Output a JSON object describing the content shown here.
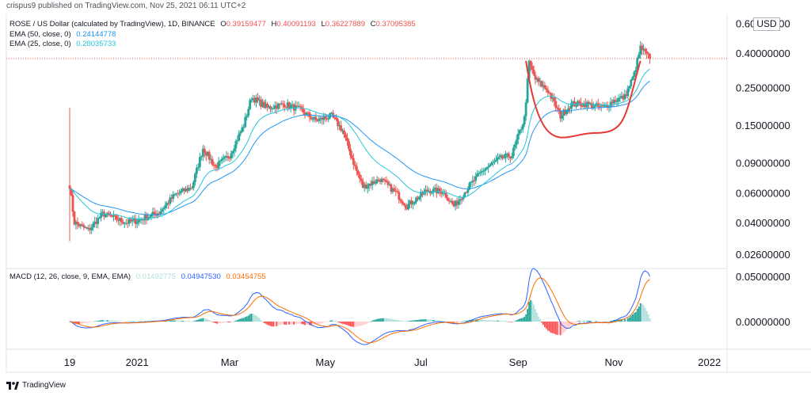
{
  "header": {
    "publisher": "crispus9 published on TradingView.com, Nov 25, 2021 06:11 UTC+2"
  },
  "legend": {
    "symbol": "ROSE / US Dollar (calculated by TradingView), 1D, BINANCE",
    "ohlc": [
      {
        "label": "O",
        "value": "0.39159477"
      },
      {
        "label": "H",
        "value": "0.40091193"
      },
      {
        "label": "L",
        "value": "0.36227889"
      },
      {
        "label": "C",
        "value": "0.37095385"
      }
    ],
    "ema50": {
      "label": "EMA (50, close, 0)",
      "value": "0.24144778"
    },
    "ema25": {
      "label": "EMA (25, close, 0)",
      "value": "0.28035733"
    },
    "macd": {
      "label": "MACD (12, 26, close, 9, EMA, EMA)",
      "hist": "0.01492775",
      "macd": "0.04947530",
      "signal": "0.03454755"
    }
  },
  "currency_badge": "USD",
  "footer": {
    "logo_text": "TradingView"
  },
  "colors": {
    "up": "#26a69a",
    "down": "#ef5350",
    "ema50": "#2196f3",
    "ema25": "#26c6da",
    "macd": "#2962ff",
    "signal": "#ff6d00",
    "hist_up_strong": "#26a69a",
    "hist_up_weak": "#b2dfdb",
    "hist_down_strong": "#ff5252",
    "hist_down_weak": "#ffcdd2",
    "annotation": "#e53935",
    "close_line": "#ef5350"
  },
  "chart_data": [
    {
      "type": "candlestick",
      "title": "ROSE / US Dollar (calculated by TradingView), 1D, BINANCE",
      "y_scale": "log",
      "ylim": [
        0.022,
        0.62
      ],
      "y_ticks": [
        "0.60000000",
        "0.40000000",
        "0.25000000",
        "0.15000000",
        "0.09000000",
        "0.06000000",
        "0.04000000",
        "0.02600000"
      ],
      "y_tick_values": [
        0.6,
        0.4,
        0.25,
        0.15,
        0.09,
        0.06,
        0.04,
        0.026
      ],
      "x_ticks": [
        "19",
        "2021",
        "Mar",
        "May",
        "Jul",
        "Sep",
        "Nov",
        "2022"
      ],
      "x_tick_dates": [
        "2020-11-19",
        "2021-01-01",
        "2021-03-01",
        "2021-05-01",
        "2021-07-01",
        "2021-09-01",
        "2021-11-01",
        "2022-01-01"
      ],
      "last_close": 0.371,
      "close_anchor_points": [
        [
          "2020-11-19",
          0.066
        ],
        [
          "2020-11-22",
          0.04
        ],
        [
          "2020-12-01",
          0.036
        ],
        [
          "2020-12-10",
          0.045
        ],
        [
          "2020-12-25",
          0.04
        ],
        [
          "2021-01-01",
          0.041
        ],
        [
          "2021-01-15",
          0.046
        ],
        [
          "2021-01-25",
          0.058
        ],
        [
          "2021-02-05",
          0.065
        ],
        [
          "2021-02-12",
          0.11
        ],
        [
          "2021-02-20",
          0.085
        ],
        [
          "2021-03-01",
          0.1
        ],
        [
          "2021-03-10",
          0.15
        ],
        [
          "2021-03-15",
          0.22
        ],
        [
          "2021-03-25",
          0.19
        ],
        [
          "2021-04-05",
          0.2
        ],
        [
          "2021-04-15",
          0.185
        ],
        [
          "2021-04-25",
          0.16
        ],
        [
          "2021-05-05",
          0.17
        ],
        [
          "2021-05-12",
          0.14
        ],
        [
          "2021-05-20",
          0.085
        ],
        [
          "2021-05-25",
          0.065
        ],
        [
          "2021-06-05",
          0.072
        ],
        [
          "2021-06-15",
          0.06
        ],
        [
          "2021-06-22",
          0.05
        ],
        [
          "2021-07-05",
          0.062
        ],
        [
          "2021-07-15",
          0.061
        ],
        [
          "2021-07-22",
          0.05
        ],
        [
          "2021-08-01",
          0.066
        ],
        [
          "2021-08-10",
          0.082
        ],
        [
          "2021-08-20",
          0.095
        ],
        [
          "2021-08-28",
          0.1
        ],
        [
          "2021-09-05",
          0.165
        ],
        [
          "2021-09-08",
          0.35
        ],
        [
          "2021-09-12",
          0.28
        ],
        [
          "2021-09-20",
          0.24
        ],
        [
          "2021-09-28",
          0.17
        ],
        [
          "2021-10-05",
          0.2
        ],
        [
          "2021-10-15",
          0.2
        ],
        [
          "2021-10-25",
          0.19
        ],
        [
          "2021-11-01",
          0.21
        ],
        [
          "2021-11-08",
          0.22
        ],
        [
          "2021-11-14",
          0.3
        ],
        [
          "2021-11-18",
          0.43
        ],
        [
          "2021-11-24",
          0.371
        ]
      ],
      "series": [
        {
          "name": "EMA (50, close, 0)",
          "last": 0.24144778
        },
        {
          "name": "EMA (25, close, 0)",
          "last": 0.28035733
        }
      ],
      "annotation": {
        "type": "cup",
        "from": "2021-09-06",
        "bottom": "2021-10-20",
        "to": "2021-11-18",
        "low": 0.135
      }
    },
    {
      "type": "line",
      "title": "MACD (12, 26, close, 9, EMA, EMA)",
      "ylim": [
        -0.02,
        0.052
      ],
      "y_ticks": [
        "0.05000000",
        "0.00000000"
      ],
      "y_tick_values": [
        0.05,
        0.0
      ],
      "series": [
        {
          "name": "MACD",
          "last": 0.0494753
        },
        {
          "name": "Signal",
          "last": 0.03454755
        },
        {
          "name": "Histogram",
          "last": 0.01492775
        }
      ]
    }
  ]
}
